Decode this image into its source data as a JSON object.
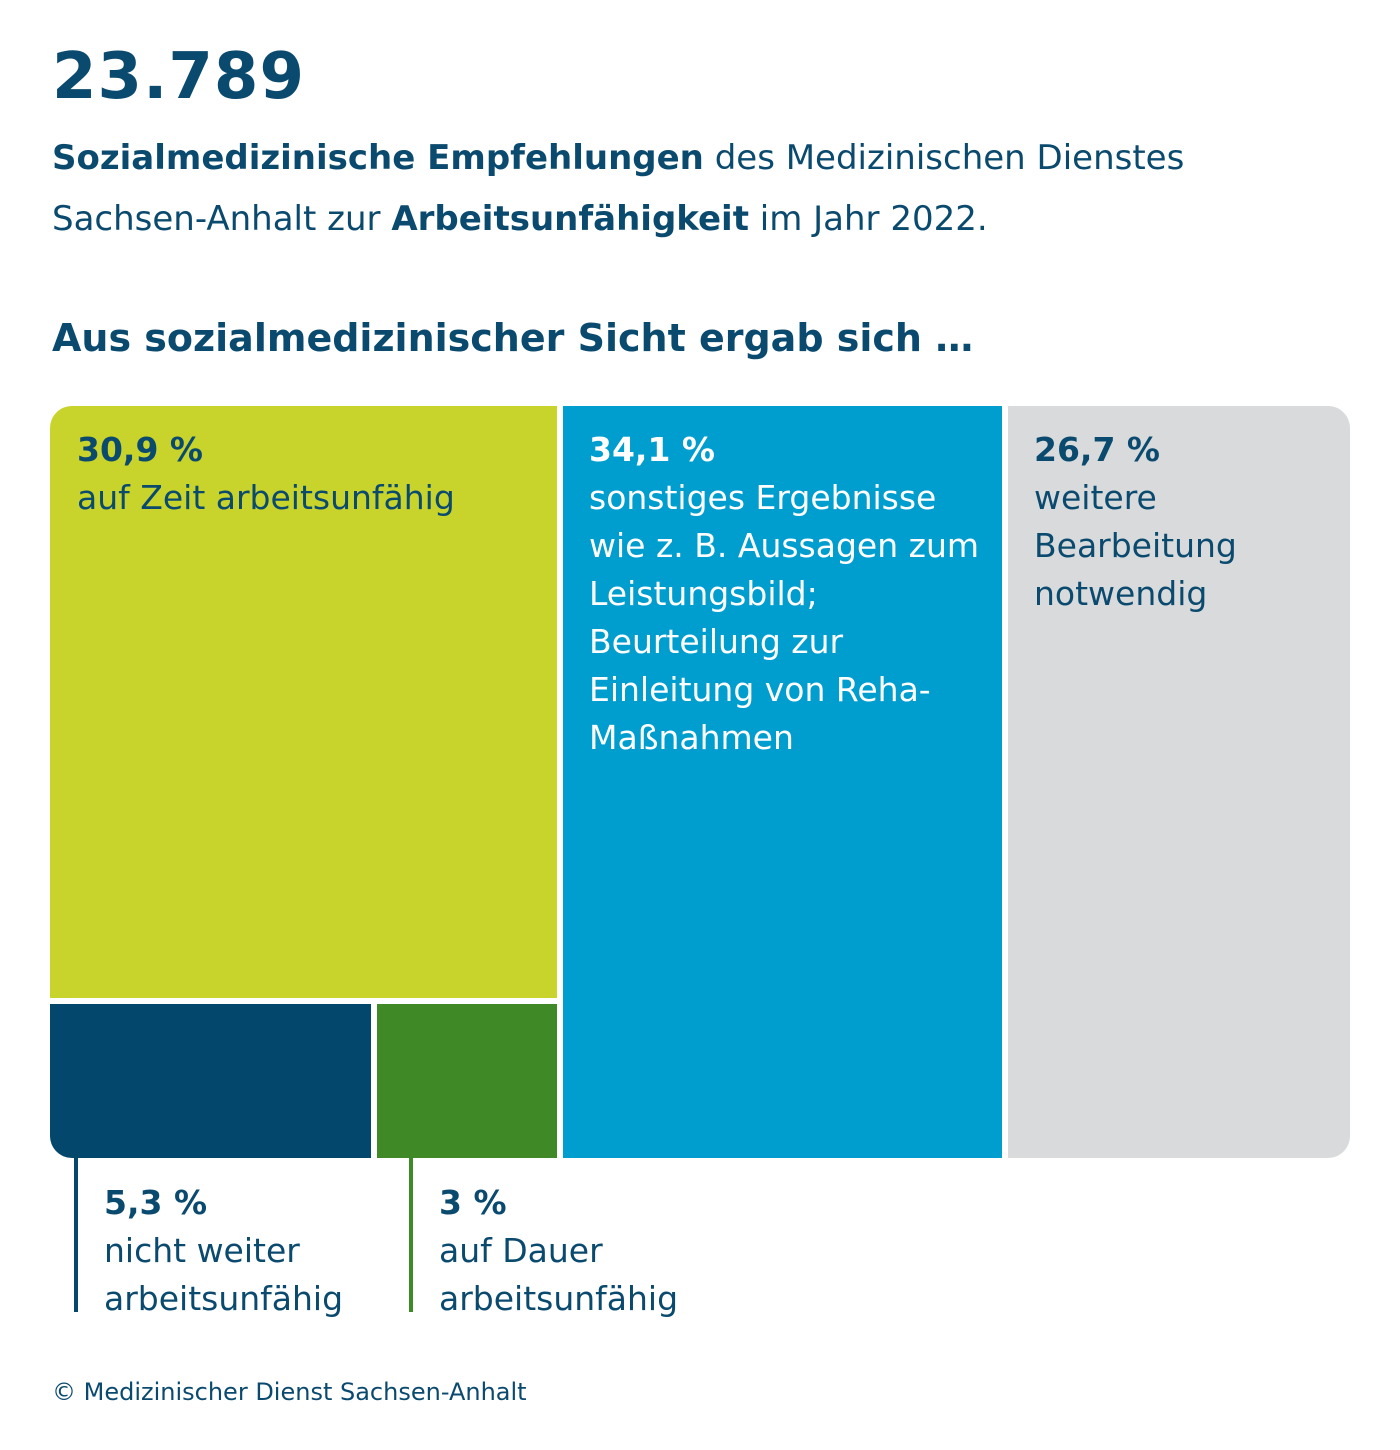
{
  "header": {
    "total": "23.789",
    "subtitle_bold1": "Sozialmedizinische Empfehlungen",
    "subtitle_text1": " des Medizinischen Dienstes Sachsen-Anhalt zur ",
    "subtitle_bold2": "Arbeitsunfähigkeit",
    "subtitle_text2": " im Jahr 2022.",
    "section_heading": "Aus sozialmedizinischer Sicht ergab sich …"
  },
  "colors": {
    "text": "#0b4a6f",
    "lime": "#c8d42b",
    "navy": "#03476d",
    "green": "#3f8a26",
    "blue": "#009dcf",
    "gray": "#d9dadb"
  },
  "chart_data": {
    "type": "treemap",
    "unit": "%",
    "segments": [
      {
        "label_value": "30,9 %",
        "value": 30.9,
        "label": "auf Zeit arbeitsunfähig",
        "color": "#c8d42b"
      },
      {
        "label_value": "5,3 %",
        "value": 5.3,
        "label": "nicht weiter arbeitsunfähig",
        "color": "#03476d"
      },
      {
        "label_value": "3 %",
        "value": 3,
        "label": "auf Dauer arbeitsunfähig",
        "color": "#3f8a26"
      },
      {
        "label_value": "34,1 %",
        "value": 34.1,
        "label": "sonstiges Ergebnisse wie z. B. Aussagen zum Leistungsbild; Beurteilung zur Einleitung von Reha-Maßnahmen",
        "color": "#009dcf"
      },
      {
        "label_value": "26,7 %",
        "value": 26.7,
        "label": "weitere Bearbeitung notwendig",
        "color": "#d9dadb"
      }
    ]
  },
  "footer": {
    "copyright": "© Medizinischer Dienst Sachsen-Anhalt"
  }
}
